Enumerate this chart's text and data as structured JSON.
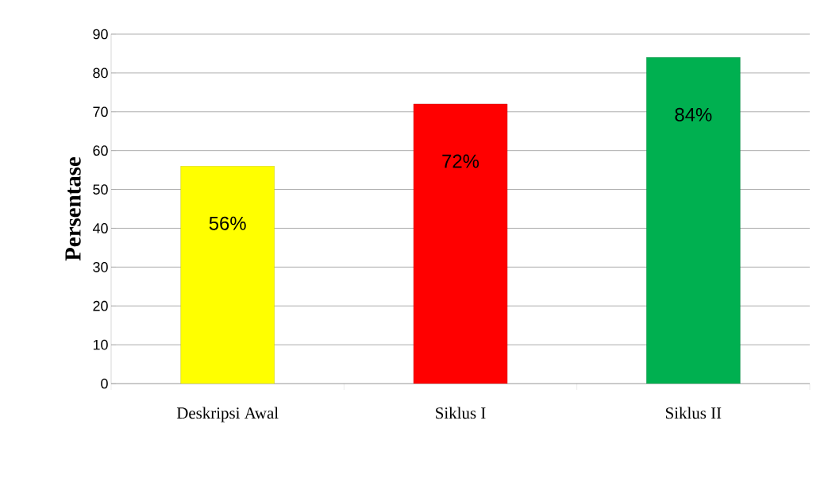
{
  "chart_data": {
    "type": "bar",
    "ylabel": "Persentase",
    "categories": [
      "Deskripsi Awal",
      "Siklus I",
      "Siklus II"
    ],
    "values": [
      56,
      72,
      84
    ],
    "value_labels": [
      "56%",
      "72%",
      "84%"
    ],
    "colors": [
      "#ffff00",
      "#ff0000",
      "#00b050"
    ],
    "ylim": [
      0,
      90
    ],
    "yticks": [
      0,
      10,
      20,
      30,
      40,
      50,
      60,
      70,
      80,
      90
    ],
    "grid": "y"
  }
}
